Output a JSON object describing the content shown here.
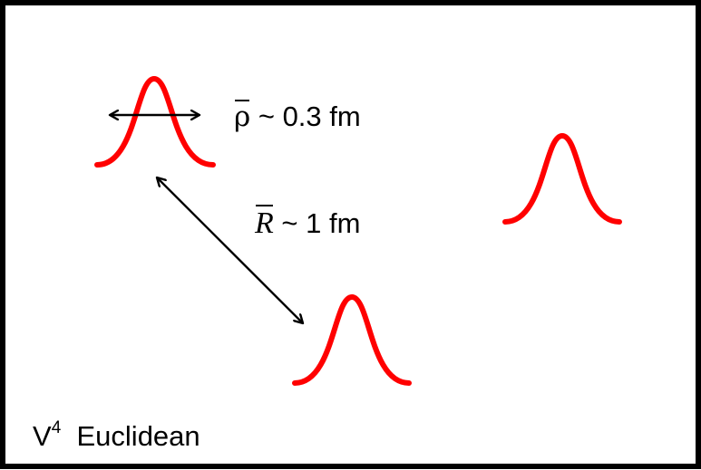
{
  "labels": {
    "rho_symbol": "ρ",
    "rho_value": " ~ 0.3 fm",
    "r_symbol": "R",
    "r_value": " ~ 1 fm",
    "space_v": "V",
    "space_exp": "4",
    "space_name": "Euclidean"
  },
  "colors": {
    "peak": "#ff0000",
    "arrow": "#000000",
    "border": "#000000"
  }
}
